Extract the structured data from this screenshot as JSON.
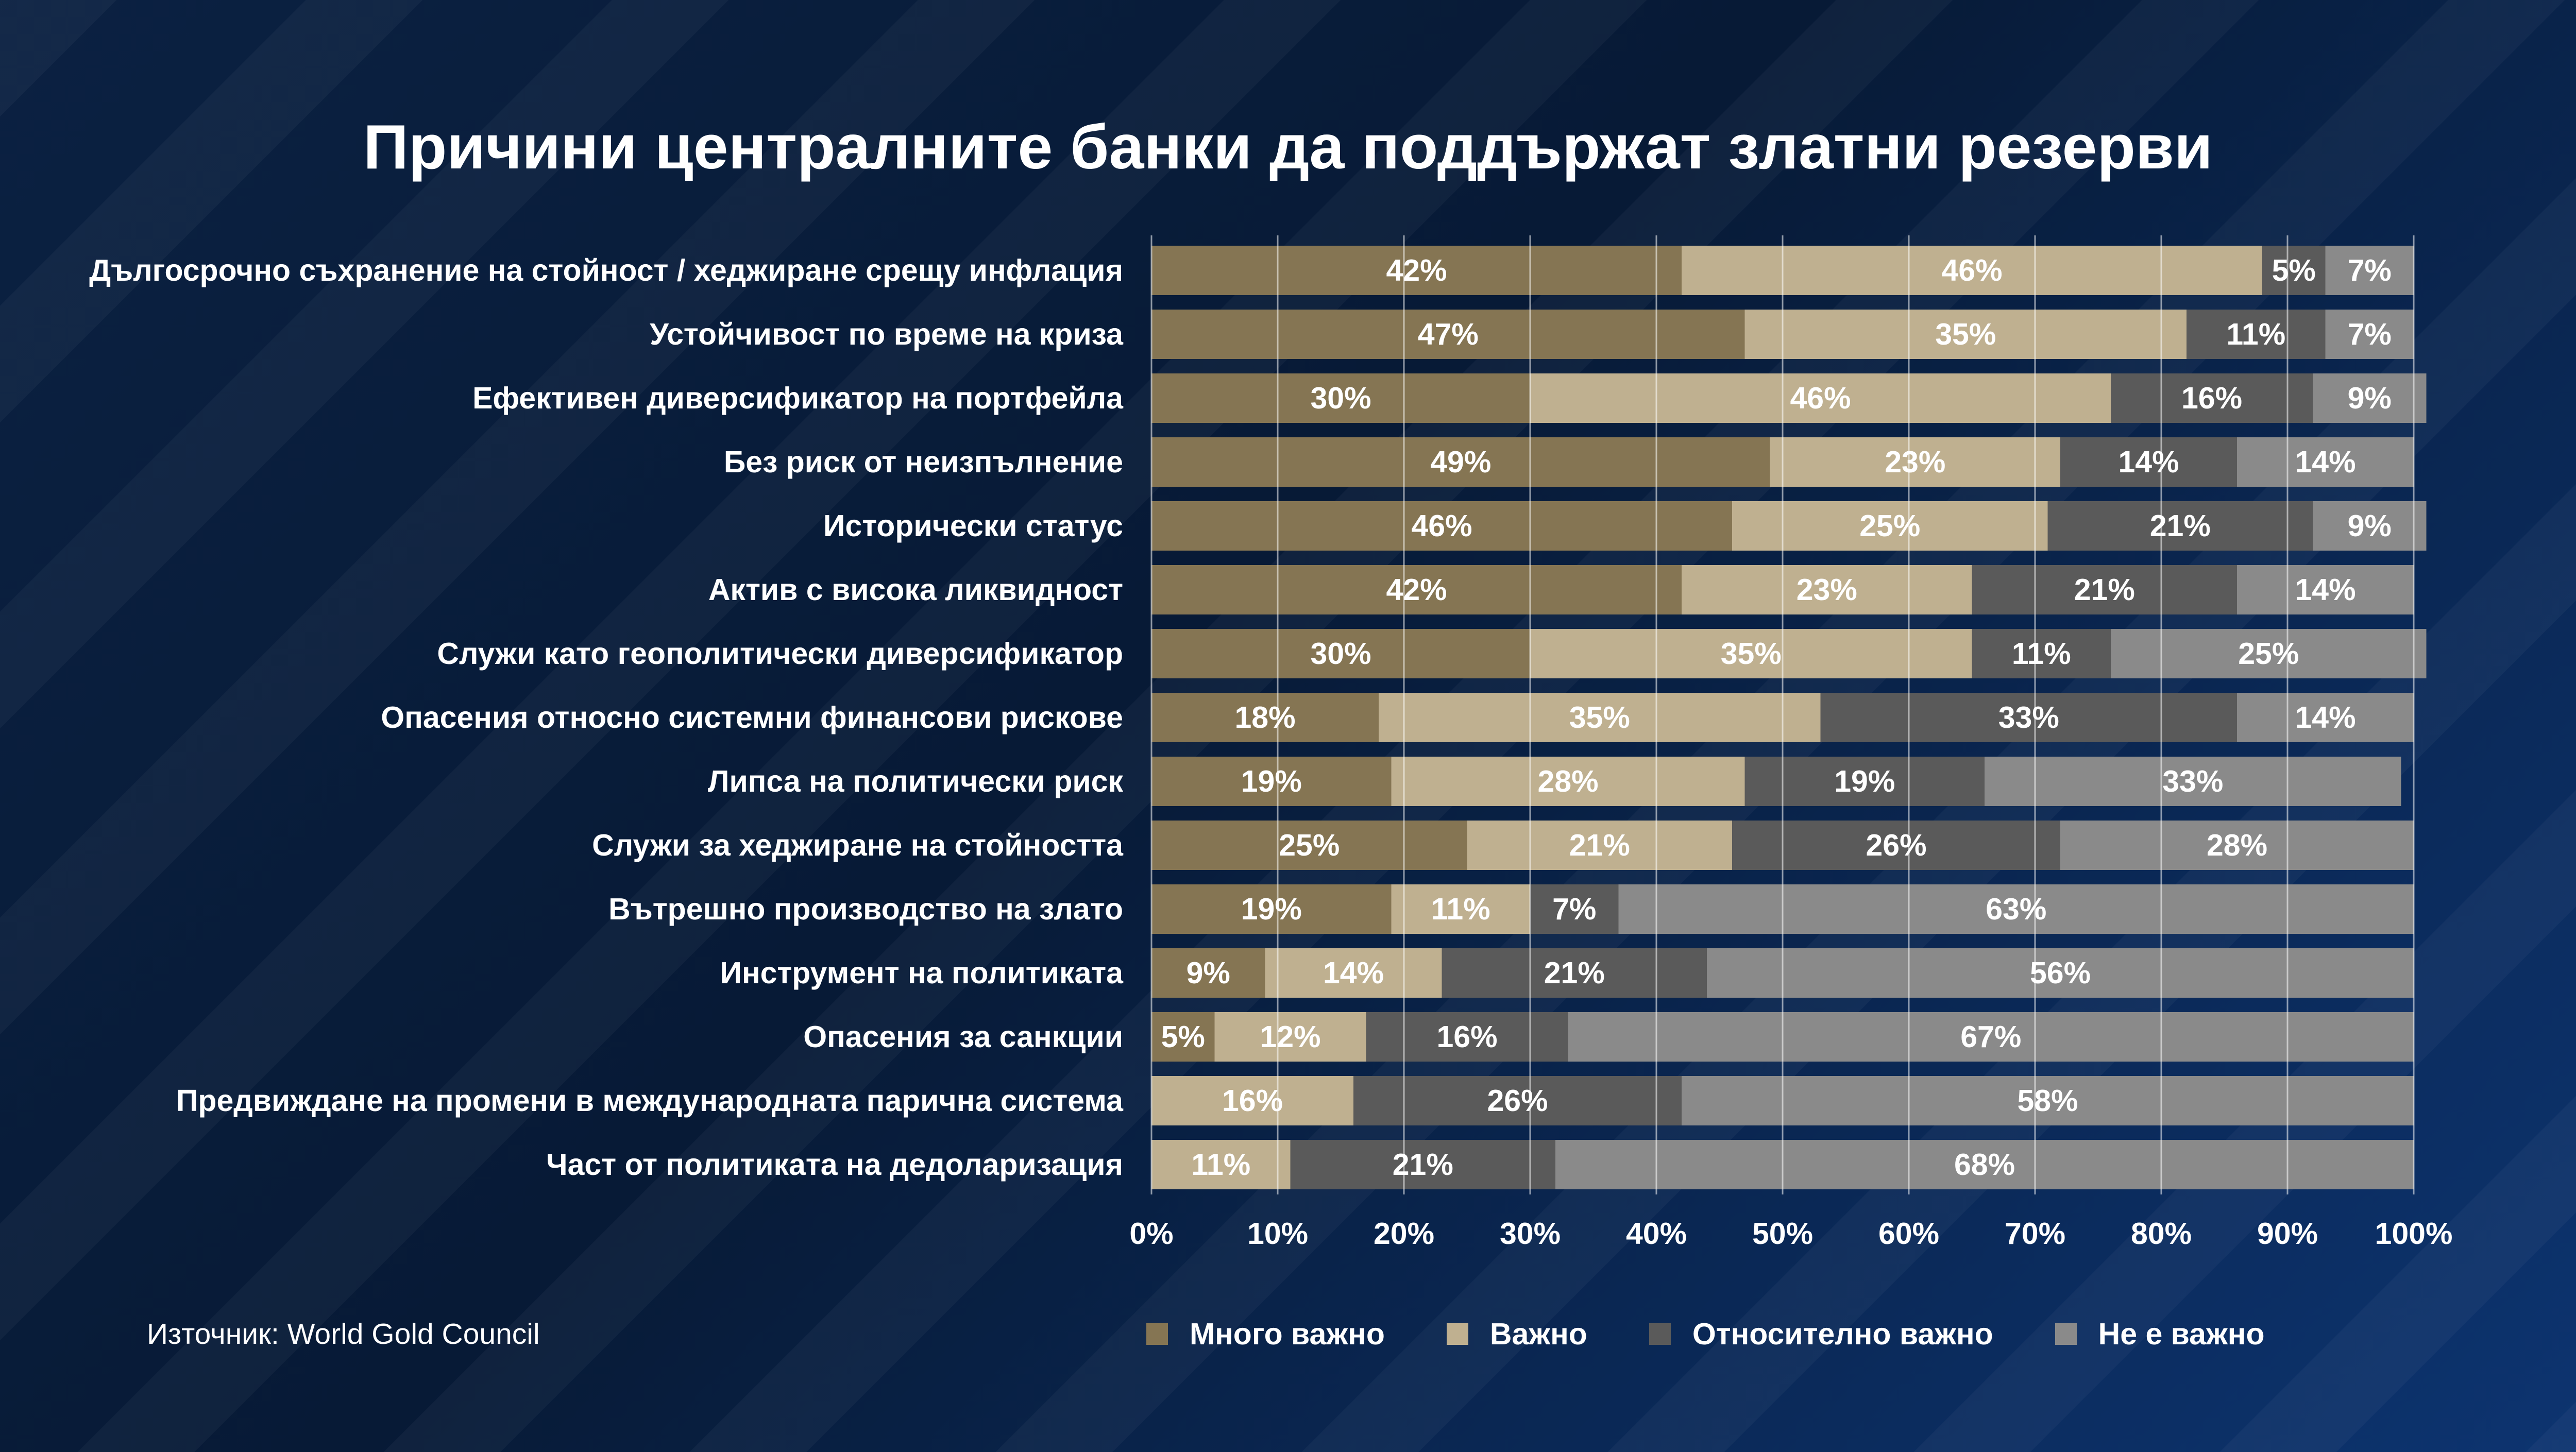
{
  "title": "Причини централните банки да поддържат златни резерви",
  "source": "Източник: World Gold Council",
  "colors": {
    "very_important": "#857553",
    "important": "#bfb090",
    "somewhat_important": "#5a5a5a",
    "not_important": "#8a8a8a"
  },
  "chart_data": {
    "type": "bar",
    "orientation": "horizontal",
    "stacked": true,
    "xlim": [
      0,
      100
    ],
    "x_ticks": [
      "0%",
      "10%",
      "20%",
      "30%",
      "40%",
      "50%",
      "60%",
      "70%",
      "80%",
      "90%",
      "100%"
    ],
    "grid": "vertical",
    "legend_position": "bottom",
    "categories": [
      "Дългосрочно съхранение на стойност / хеджиране срещу инфлация",
      "Устойчивост по време на криза",
      "Ефективен диверсификатор на портфейла",
      "Без риск от неизпълнение",
      "Исторически статус",
      "Актив с висока ликвидност",
      "Служи като геополитически диверсификатор",
      "Опасения относно системни финансови рискове",
      "Липса на политически риск",
      "Служи за хеджиране на стойността",
      "Вътрешно производство на злато",
      "Инструмент на политиката",
      "Опасения за санкции",
      "Предвиждане на промени в международната парична система",
      "Част от политиката на дедоларизация"
    ],
    "series": [
      {
        "name": "Много важно",
        "color": "#857553",
        "values": [
          42,
          47,
          30,
          49,
          46,
          42,
          30,
          18,
          19,
          25,
          19,
          9,
          5,
          0,
          0
        ]
      },
      {
        "name": "Важно",
        "color": "#bfb090",
        "values": [
          46,
          35,
          46,
          23,
          25,
          23,
          35,
          35,
          28,
          21,
          11,
          14,
          12,
          16,
          11
        ]
      },
      {
        "name": "Относително важно",
        "color": "#5a5a5a",
        "values": [
          5,
          11,
          16,
          14,
          21,
          21,
          11,
          33,
          19,
          26,
          7,
          21,
          16,
          26,
          21
        ]
      },
      {
        "name": "Не е важно",
        "color": "#8a8a8a",
        "values": [
          7,
          7,
          9,
          14,
          9,
          14,
          25,
          14,
          33,
          28,
          63,
          56,
          67,
          58,
          68
        ]
      }
    ]
  }
}
